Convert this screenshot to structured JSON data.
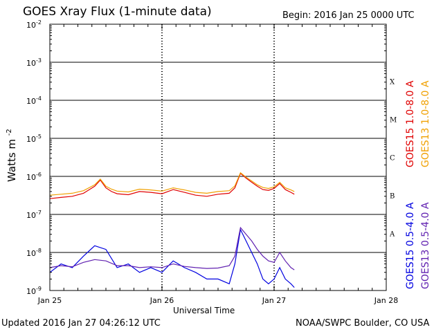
{
  "header": {
    "title": "GOES Xray Flux (1-minute data)",
    "begin": "Begin:  2016 Jan 25 0000 UTC"
  },
  "footer": {
    "updated": "Updated 2016 Jan 27 04:26:12 UTC",
    "credit": "NOAA/SWPC Boulder, CO USA"
  },
  "chart_data": {
    "type": "line",
    "title": "GOES Xray Flux (1-minute data)",
    "xlabel": "Universal Time",
    "ylabel": "Watts m",
    "ylabel_superscript": "-2",
    "y_scale": "log",
    "ylim": [
      1e-09,
      0.01
    ],
    "xlim": [
      "2016-01-25",
      "2016-01-28"
    ],
    "x_ticks": [
      "Jan 25",
      "Jan 26",
      "Jan 27",
      "Jan 28"
    ],
    "y_ticks": [
      {
        "base": "10",
        "exp": "-2"
      },
      {
        "base": "10",
        "exp": "-3"
      },
      {
        "base": "10",
        "exp": "-4"
      },
      {
        "base": "10",
        "exp": "-5"
      },
      {
        "base": "10",
        "exp": "-6"
      },
      {
        "base": "10",
        "exp": "-7"
      },
      {
        "base": "10",
        "exp": "-8"
      },
      {
        "base": "10",
        "exp": "-9"
      }
    ],
    "flare_classes": [
      "X",
      "M",
      "C",
      "B",
      "A"
    ],
    "grid": true,
    "legend_position": "right, vertical",
    "series": [
      {
        "name": "GOES15 1.0-8.0 A",
        "color": "#e00000",
        "time_days": [
          0,
          0.1,
          0.2,
          0.3,
          0.4,
          0.45,
          0.5,
          0.55,
          0.6,
          0.7,
          0.8,
          0.9,
          1.0,
          1.1,
          1.2,
          1.3,
          1.4,
          1.5,
          1.55,
          1.6,
          1.65,
          1.7,
          1.75,
          1.8,
          1.85,
          1.9,
          1.95,
          2.0,
          2.05,
          2.1,
          2.15,
          2.18
        ],
        "values": [
          2.6e-07,
          2.8e-07,
          3e-07,
          3.6e-07,
          5.5e-07,
          8e-07,
          5e-07,
          4e-07,
          3.5e-07,
          3.3e-07,
          4e-07,
          3.8e-07,
          3.5e-07,
          4.5e-07,
          3.8e-07,
          3.2e-07,
          3e-07,
          3.4e-07,
          3.5e-07,
          3.6e-07,
          5e-07,
          1.2e-06,
          9e-07,
          7e-07,
          5.5e-07,
          4.5e-07,
          4.3e-07,
          4.8e-07,
          6.5e-07,
          4.5e-07,
          3.8e-07,
          3.4e-07
        ]
      },
      {
        "name": "GOES13 1.0-8.0 A",
        "color": "#f0a000",
        "time_days": [
          0,
          0.1,
          0.2,
          0.3,
          0.4,
          0.45,
          0.5,
          0.55,
          0.6,
          0.7,
          0.8,
          0.9,
          1.0,
          1.1,
          1.2,
          1.3,
          1.4,
          1.5,
          1.55,
          1.6,
          1.65,
          1.7,
          1.75,
          1.8,
          1.85,
          1.9,
          1.95,
          2.0,
          2.05,
          2.1,
          2.15,
          2.18
        ],
        "values": [
          3.2e-07,
          3.4e-07,
          3.6e-07,
          4.2e-07,
          6e-07,
          8.5e-07,
          5.5e-07,
          4.6e-07,
          4.1e-07,
          3.9e-07,
          4.6e-07,
          4.4e-07,
          4.1e-07,
          5e-07,
          4.4e-07,
          3.8e-07,
          3.6e-07,
          4e-07,
          4.1e-07,
          4.2e-07,
          5.6e-07,
          1.25e-06,
          9.5e-07,
          7.6e-07,
          6e-07,
          5.1e-07,
          4.8e-07,
          5.3e-07,
          7e-07,
          5e-07,
          4.4e-07,
          4e-07
        ]
      },
      {
        "name": "GOES15 0.5-4.0 A",
        "color": "#0000e0",
        "time_days": [
          0,
          0.1,
          0.2,
          0.3,
          0.4,
          0.5,
          0.6,
          0.7,
          0.8,
          0.9,
          1.0,
          1.1,
          1.2,
          1.3,
          1.4,
          1.5,
          1.6,
          1.65,
          1.7,
          1.75,
          1.8,
          1.85,
          1.9,
          1.95,
          2.0,
          2.05,
          2.1,
          2.15,
          2.18
        ],
        "values": [
          3e-09,
          5e-09,
          4e-09,
          8e-09,
          1.5e-08,
          1.2e-08,
          4e-09,
          5e-09,
          3e-09,
          4e-09,
          3e-09,
          6e-09,
          4e-09,
          3e-09,
          2e-09,
          2e-09,
          1.5e-09,
          5e-09,
          4e-08,
          2e-08,
          1e-08,
          5e-09,
          2e-09,
          1.5e-09,
          2e-09,
          4e-09,
          2e-09,
          1.5e-09,
          1.2e-09
        ]
      },
      {
        "name": "GOES13 0.5-4.0 A",
        "color": "#6020b0",
        "time_days": [
          0,
          0.1,
          0.2,
          0.3,
          0.4,
          0.5,
          0.6,
          0.7,
          0.8,
          0.9,
          1.0,
          1.1,
          1.2,
          1.3,
          1.4,
          1.5,
          1.6,
          1.65,
          1.7,
          1.75,
          1.8,
          1.85,
          1.9,
          1.95,
          2.0,
          2.05,
          2.1,
          2.15,
          2.18
        ],
        "values": [
          4e-09,
          4.5e-09,
          4.2e-09,
          5.5e-09,
          6.5e-09,
          6e-09,
          4.5e-09,
          4.5e-09,
          4e-09,
          4.2e-09,
          4e-09,
          5e-09,
          4.3e-09,
          4e-09,
          3.8e-09,
          3.9e-09,
          4.5e-09,
          8e-09,
          4.5e-08,
          3e-08,
          2e-08,
          1.2e-08,
          8e-09,
          6e-09,
          5.5e-09,
          1e-08,
          6e-09,
          4e-09,
          3.5e-09
        ]
      }
    ]
  }
}
